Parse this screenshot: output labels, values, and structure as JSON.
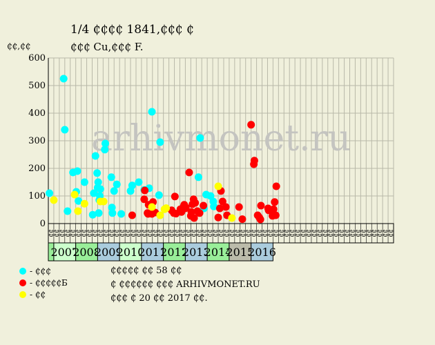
{
  "title": "1/4 ₵₵₵₵ 1841,₵₵₵ ₵",
  "subtitle": "₵₵₵ Cu,₵₵₵ F.",
  "watermark": "arhivmonet.ru",
  "notes": [
    "₵₵₵₵₵ ₵₵ 58 ₵₵",
    "₵ ₵₵₵₵₵₵ ₵₵₵ ARHIVMONET.RU",
    "₵₵₵ ₵ 20 ₵₵ 2017 ₵₵."
  ],
  "colors": {
    "background": "#f0f0dc",
    "grid": "#b8b8a8",
    "series": [
      "#00ffff",
      "#ff0000",
      "#ffff00"
    ]
  },
  "chart_data": {
    "type": "scatter",
    "ylabel": "₵₵,₵₵",
    "ylim": [
      0,
      600
    ],
    "yticks": [
      0,
      100,
      200,
      300,
      400,
      500,
      600
    ],
    "x_slot_labels": [
      "₵₵",
      "₵₵",
      "₵₵",
      "₵₵",
      "₵₵",
      "₵₵",
      "₵₵",
      "₵₵",
      "₵₵",
      "₵₵",
      "₵₵",
      "₵₵",
      "₵₵",
      "₵₵",
      "₵₵",
      "₵₵",
      "₵₵",
      "₵₵",
      "₵₵",
      "₵₵",
      "₵₵",
      "₵₵",
      "₵₵",
      "₵₵",
      "₵₵",
      "₵₵",
      "₵₵",
      "₵₵",
      "₵₵",
      "₵₵",
      "₵₵",
      "₵₵",
      "₵₵",
      "₵₵",
      "₵₵",
      "₵₵",
      "₵₵",
      "₵₵",
      "₵₵",
      "₵₵",
      "₵₵",
      "₵₵",
      "₵₵",
      "₵₵",
      "₵₵",
      "₵₵",
      "₵₵",
      "₵₵",
      "₵₵",
      "₵₵",
      "₵₵",
      "₵₵",
      "₵₵",
      "₵₵",
      "₵₵",
      "₵₵",
      "₵₵",
      "₵₵",
      "₵₵",
      "₵₵",
      "₵₵",
      "₵₵",
      "₵₵"
    ],
    "years": [
      {
        "label": "2007",
        "color": "#ccffcc"
      },
      {
        "label": "2008",
        "color": "#99ee99"
      },
      {
        "label": "2009",
        "color": "#aaccdd"
      },
      {
        "label": "2010",
        "color": "#ccffcc"
      },
      {
        "label": "2011",
        "color": "#aaccdd"
      },
      {
        "label": "2012",
        "color": "#99ee99"
      },
      {
        "label": "2013",
        "color": "#aaccdd"
      },
      {
        "label": "2014",
        "color": "#99ee99"
      },
      {
        "label": "2015",
        "color": "#bbbbaa"
      },
      {
        "label": "2016",
        "color": "#aaccdd"
      }
    ],
    "series": [
      {
        "name": "- ₵₵₵",
        "color": "#00ffff",
        "points": [
          [
            0.2,
            110
          ],
          [
            2.8,
            525
          ],
          [
            3.0,
            340
          ],
          [
            3.5,
            45
          ],
          [
            4.5,
            185
          ],
          [
            5.1,
            115
          ],
          [
            5.3,
            190
          ],
          [
            5.5,
            82
          ],
          [
            6.6,
            150
          ],
          [
            8.1,
            32
          ],
          [
            8.3,
            110
          ],
          [
            8.6,
            245
          ],
          [
            8.9,
            183
          ],
          [
            9.0,
            130
          ],
          [
            9.1,
            150
          ],
          [
            9.2,
            38
          ],
          [
            9.3,
            85
          ],
          [
            9.4,
            100
          ],
          [
            9.5,
            125
          ],
          [
            10.3,
            268
          ],
          [
            10.4,
            290
          ],
          [
            11.5,
            168
          ],
          [
            11.6,
            58
          ],
          [
            11.7,
            38
          ],
          [
            12.0,
            118
          ],
          [
            12.5,
            142
          ],
          [
            13.3,
            35
          ],
          [
            15.0,
            118
          ],
          [
            15.3,
            138
          ],
          [
            16.5,
            150
          ],
          [
            17.5,
            122
          ],
          [
            18.4,
            128
          ],
          [
            18.9,
            405
          ],
          [
            20.2,
            103
          ],
          [
            20.4,
            295
          ],
          [
            27.4,
            168
          ],
          [
            27.7,
            310
          ],
          [
            28.4,
            55
          ],
          [
            28.8,
            105
          ],
          [
            29.6,
            100
          ],
          [
            30.1,
            80
          ],
          [
            30.2,
            62
          ]
        ]
      },
      {
        "name": "- ₵₵₵₵₵Б",
        "color": "#ff0000",
        "points": [
          [
            15.3,
            30
          ],
          [
            17.5,
            88
          ],
          [
            17.6,
            120
          ],
          [
            18.1,
            38
          ],
          [
            18.2,
            35
          ],
          [
            18.3,
            68
          ],
          [
            18.9,
            35
          ],
          [
            19.1,
            78
          ],
          [
            19.5,
            40
          ],
          [
            22.5,
            48
          ],
          [
            22.9,
            38
          ],
          [
            23.1,
            98
          ],
          [
            23.3,
            36
          ],
          [
            24.1,
            52
          ],
          [
            24.3,
            42
          ],
          [
            24.5,
            55
          ],
          [
            24.7,
            62
          ],
          [
            24.8,
            68
          ],
          [
            25.0,
            55
          ],
          [
            25.1,
            58
          ],
          [
            25.7,
            185
          ],
          [
            26.0,
            28
          ],
          [
            26.1,
            42
          ],
          [
            26.3,
            70
          ],
          [
            26.5,
            88
          ],
          [
            26.6,
            20
          ],
          [
            26.8,
            75
          ],
          [
            27.2,
            45
          ],
          [
            27.6,
            38
          ],
          [
            28.3,
            65
          ],
          [
            31.0,
            22
          ],
          [
            31.3,
            55
          ],
          [
            31.5,
            118
          ],
          [
            31.8,
            80
          ],
          [
            32.4,
            60
          ],
          [
            32.6,
            30
          ],
          [
            34.8,
            60
          ],
          [
            35.4,
            16
          ],
          [
            37.0,
            358
          ],
          [
            37.5,
            215
          ],
          [
            37.6,
            228
          ],
          [
            38.2,
            30
          ],
          [
            38.5,
            22
          ],
          [
            38.7,
            15
          ],
          [
            38.8,
            65
          ],
          [
            40.1,
            55
          ],
          [
            40.2,
            48
          ],
          [
            40.9,
            28
          ],
          [
            41.1,
            52
          ],
          [
            41.3,
            78
          ],
          [
            41.5,
            30
          ],
          [
            41.6,
            135
          ]
        ]
      },
      {
        "name": "- ₵₵",
        "color": "#ffff00",
        "points": [
          [
            1.0,
            85
          ],
          [
            4.8,
            105
          ],
          [
            5.4,
            45
          ],
          [
            6.6,
            72
          ],
          [
            9.5,
            80
          ],
          [
            10.1,
            80
          ],
          [
            18.9,
            60
          ],
          [
            20.4,
            30
          ],
          [
            21.2,
            52
          ],
          [
            21.5,
            56
          ],
          [
            31.0,
            135
          ],
          [
            33.5,
            20
          ]
        ]
      }
    ]
  }
}
